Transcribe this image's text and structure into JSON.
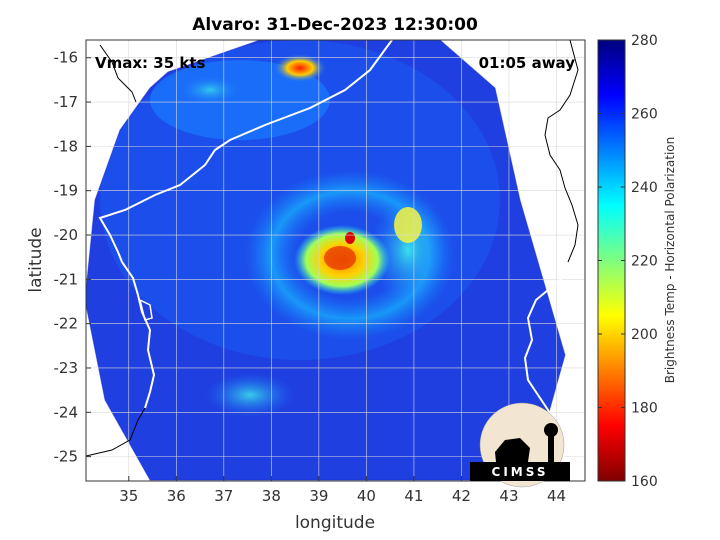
{
  "title": "Alvaro: 31-Dec-2023 12:30:00",
  "annotations": {
    "vmax": "Vmax: 35 kts",
    "away": "01:05 away"
  },
  "axes": {
    "xlabel": "longitude",
    "ylabel": "latitude",
    "xlim": [
      34.1,
      44.6
    ],
    "ylim": [
      -25.55,
      -15.6
    ],
    "xticks": [
      "35",
      "36",
      "37",
      "38",
      "39",
      "40",
      "41",
      "42",
      "43",
      "44"
    ],
    "yticks": [
      "-16",
      "-17",
      "-18",
      "-19",
      "-20",
      "-21",
      "-22",
      "-23",
      "-24",
      "-25"
    ],
    "grid": true
  },
  "colorbar": {
    "label": "Brightness Temp - Horizontal Polarization",
    "min": 160,
    "max": 280,
    "ticks": [
      "280",
      "260",
      "240",
      "220",
      "200",
      "180",
      "160"
    ],
    "colormap": "jet"
  },
  "map": {
    "storm_center_lon": 39.7,
    "storm_center_lat": -20.6,
    "background_temp_K": 265
  },
  "logo": {
    "text": "CIMSS"
  }
}
